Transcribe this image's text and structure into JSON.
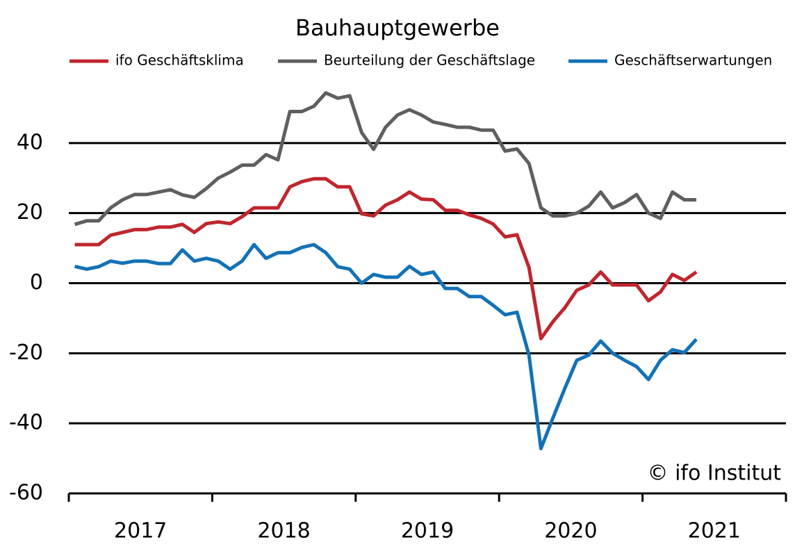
{
  "chart_data": {
    "type": "line",
    "title": "Bauhauptgewerbe",
    "categories": [
      null,
      null,
      null,
      null,
      null,
      null,
      null,
      null,
      null,
      null,
      null,
      null,
      null,
      null,
      null,
      null,
      null,
      null,
      null,
      null,
      null,
      null,
      null,
      null,
      null,
      null,
      null,
      null,
      null,
      null,
      null,
      null,
      null,
      null,
      null,
      null,
      null,
      null,
      null,
      null,
      null,
      null,
      null,
      null,
      null,
      null,
      null,
      null,
      null,
      null,
      null,
      null,
      null
    ],
    "year_labels": [
      "2017",
      "2018",
      "2019",
      "2020",
      "2021"
    ],
    "series": [
      {
        "name": "ifo Geschäftsklima",
        "color": "#c0262d",
        "values": [
          11,
          11,
          11,
          13.7,
          14.5,
          15.3,
          15.3,
          16,
          16,
          16.8,
          14.5,
          17,
          17.5,
          17,
          19,
          21.5,
          21.5,
          21.5,
          27.5,
          29,
          29.8,
          29.8,
          27.5,
          27.5,
          19.8,
          19.2,
          22.3,
          23.8,
          26,
          24,
          23.8,
          20.8,
          20.8,
          19.5,
          18.5,
          16.9,
          13.2,
          13.8,
          4.5,
          -15.8,
          -11,
          -7,
          -2,
          -0.5,
          3.2,
          -0.5,
          -0.5,
          -0.5,
          -5,
          -2.5,
          2.5,
          0.8,
          3.2
        ]
      },
      {
        "name": "Beurteilung der Geschäftslage",
        "color": "#5f5f5f",
        "values": [
          16.8,
          17.8,
          17.8,
          21.5,
          23.8,
          25.3,
          25.3,
          26,
          26.7,
          25.2,
          24.5,
          27,
          30,
          31.7,
          33.7,
          33.7,
          36.7,
          35.2,
          49,
          49,
          50.5,
          54.3,
          52.8,
          53.5,
          43,
          38.2,
          44.5,
          48,
          49.5,
          48,
          46,
          45.3,
          44.5,
          44.5,
          43.7,
          43.7,
          37.7,
          38.3,
          34.2,
          21.5,
          19.2,
          19.2,
          20,
          22,
          26,
          21.5,
          23,
          25.3,
          20,
          18.5,
          26,
          23.8,
          23.8
        ]
      },
      {
        "name": "Geschäftserwartungen",
        "color": "#1372b6",
        "values": [
          4.8,
          4,
          4.7,
          6.3,
          5.7,
          6.3,
          6.3,
          5.6,
          5.6,
          9.5,
          6.3,
          7.1,
          6.3,
          4,
          6.3,
          11,
          7.1,
          8.7,
          8.7,
          10.2,
          11,
          8.7,
          4.7,
          4,
          0,
          2.5,
          1.7,
          1.7,
          4.8,
          2.5,
          3.2,
          -1.5,
          -1.5,
          -3.8,
          -3.8,
          -6.3,
          -9,
          -8.3,
          -20.5,
          -47.2,
          -38.5,
          -30,
          -22,
          -20.5,
          -16.5,
          -20,
          -22,
          -23.8,
          -27.5,
          -22,
          -19,
          -19.8,
          -16
        ]
      }
    ],
    "ylim": [
      -60,
      60
    ],
    "yticks": [
      -60,
      -40,
      -20,
      0,
      20,
      40
    ],
    "grid": true,
    "legend": "top",
    "annotation": "© ifo Institut"
  }
}
